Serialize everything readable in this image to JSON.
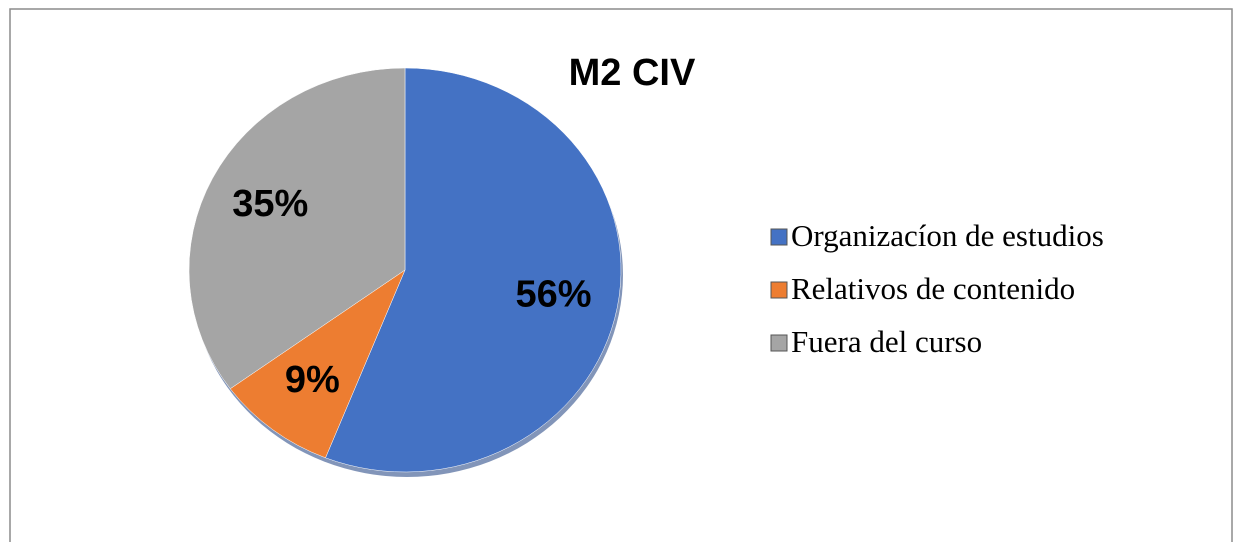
{
  "chart_data": {
    "type": "pie",
    "title": "M2 CIV",
    "categories": [
      "Organizacíon de estudios",
      "Relativos de contenido",
      "Fuera del curso"
    ],
    "values": [
      56,
      9,
      35
    ],
    "value_labels": [
      "56%",
      "9%",
      "35%"
    ],
    "colors": [
      "#4472c4",
      "#ed7d31",
      "#a5a5a5"
    ],
    "legend": "right"
  }
}
